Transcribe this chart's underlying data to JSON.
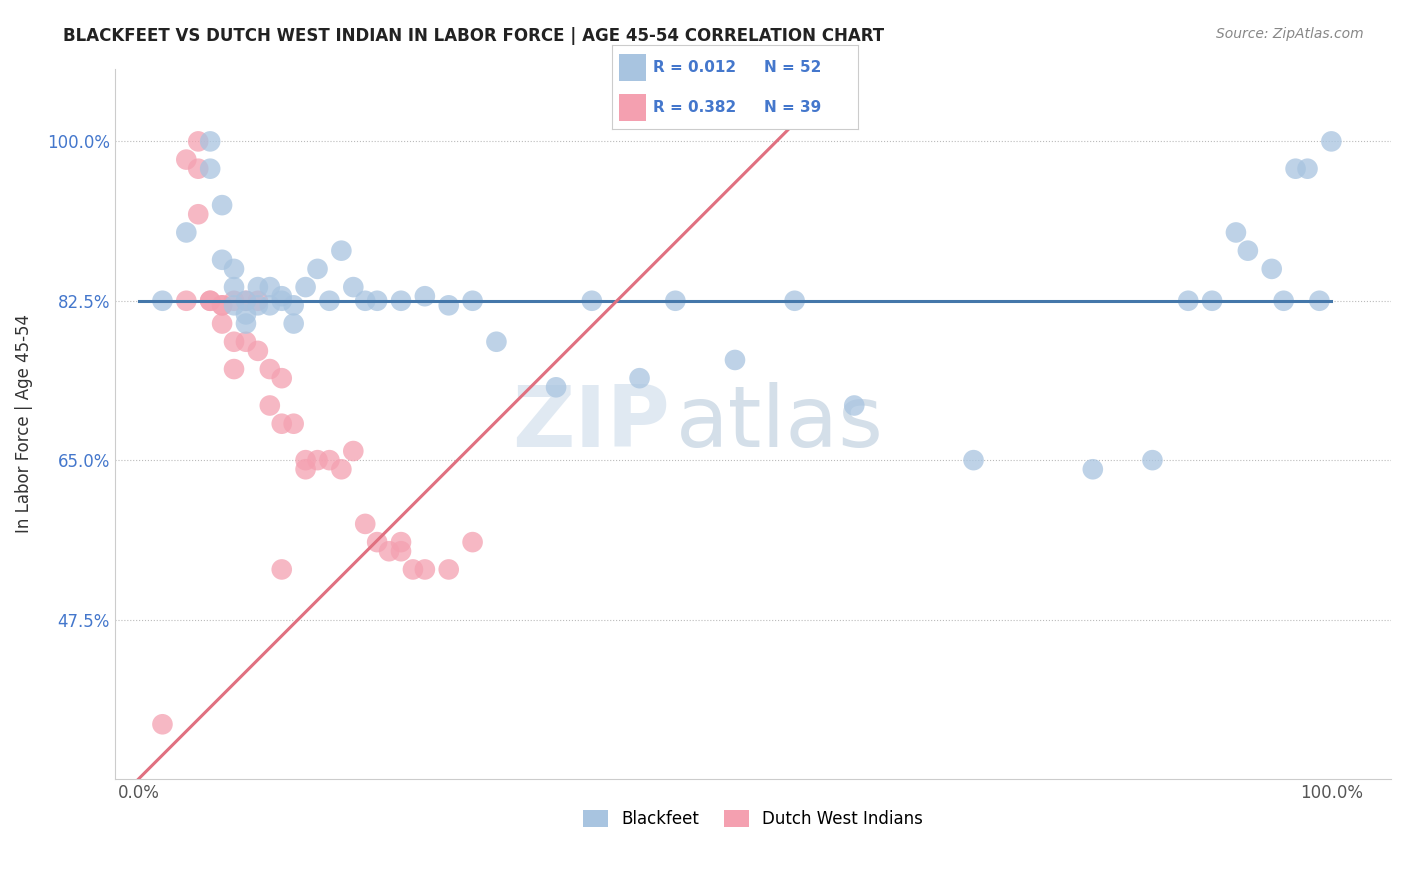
{
  "title": "BLACKFEET VS DUTCH WEST INDIAN IN LABOR FORCE | AGE 45-54 CORRELATION CHART",
  "source": "Source: ZipAtlas.com",
  "ylabel": "In Labor Force | Age 45-54",
  "xlim": [
    -0.02,
    1.05
  ],
  "ylim": [
    0.3,
    1.08
  ],
  "xticks": [
    0.0,
    1.0
  ],
  "xticklabels": [
    "0.0%",
    "100.0%"
  ],
  "yticks": [
    0.475,
    0.65,
    0.825,
    1.0
  ],
  "yticklabels": [
    "47.5%",
    "65.0%",
    "82.5%",
    "100.0%"
  ],
  "blue_R": "0.012",
  "blue_N": "52",
  "pink_R": "0.382",
  "pink_N": "39",
  "blue_color": "#a8c4e0",
  "pink_color": "#f4a0b0",
  "blue_line_color": "#4477aa",
  "pink_line_color": "#e07080",
  "legend_label_blue": "Blackfeet",
  "legend_label_pink": "Dutch West Indians",
  "watermark_zip": "ZIP",
  "watermark_atlas": "atlas",
  "blue_scatter_x": [
    0.02,
    0.04,
    0.06,
    0.06,
    0.07,
    0.07,
    0.08,
    0.08,
    0.08,
    0.09,
    0.09,
    0.09,
    0.1,
    0.1,
    0.11,
    0.11,
    0.12,
    0.12,
    0.13,
    0.13,
    0.14,
    0.15,
    0.16,
    0.17,
    0.18,
    0.19,
    0.2,
    0.22,
    0.24,
    0.26,
    0.28,
    0.3,
    0.35,
    0.38,
    0.42,
    0.45,
    0.5,
    0.55,
    0.6,
    0.7,
    0.8,
    0.85,
    0.88,
    0.9,
    0.92,
    0.93,
    0.95,
    0.96,
    0.97,
    0.98,
    0.99,
    1.0
  ],
  "blue_scatter_y": [
    0.825,
    0.9,
    1.0,
    0.97,
    0.93,
    0.87,
    0.86,
    0.84,
    0.82,
    0.825,
    0.81,
    0.8,
    0.84,
    0.82,
    0.84,
    0.82,
    0.83,
    0.825,
    0.82,
    0.8,
    0.84,
    0.86,
    0.825,
    0.88,
    0.84,
    0.825,
    0.825,
    0.825,
    0.83,
    0.82,
    0.825,
    0.78,
    0.73,
    0.825,
    0.74,
    0.825,
    0.76,
    0.825,
    0.71,
    0.65,
    0.64,
    0.65,
    0.825,
    0.825,
    0.9,
    0.88,
    0.86,
    0.825,
    0.97,
    0.97,
    0.825,
    1.0
  ],
  "pink_scatter_x": [
    0.02,
    0.04,
    0.04,
    0.05,
    0.05,
    0.05,
    0.06,
    0.06,
    0.07,
    0.07,
    0.07,
    0.08,
    0.08,
    0.08,
    0.09,
    0.09,
    0.1,
    0.1,
    0.11,
    0.11,
    0.12,
    0.12,
    0.13,
    0.14,
    0.14,
    0.15,
    0.16,
    0.17,
    0.18,
    0.19,
    0.2,
    0.21,
    0.22,
    0.22,
    0.23,
    0.24,
    0.26,
    0.28,
    0.12
  ],
  "pink_scatter_y": [
    0.36,
    0.825,
    0.98,
    1.0,
    0.97,
    0.92,
    0.825,
    0.825,
    0.82,
    0.82,
    0.8,
    0.825,
    0.78,
    0.75,
    0.825,
    0.78,
    0.825,
    0.77,
    0.75,
    0.71,
    0.74,
    0.69,
    0.69,
    0.65,
    0.64,
    0.65,
    0.65,
    0.64,
    0.66,
    0.58,
    0.56,
    0.55,
    0.56,
    0.55,
    0.53,
    0.53,
    0.53,
    0.56,
    0.53
  ],
  "blue_line_x0": 0.0,
  "blue_line_x1": 1.0,
  "blue_line_y0": 0.825,
  "blue_line_y1": 0.825,
  "pink_line_x0": 0.0,
  "pink_line_x1": 0.55,
  "pink_line_y0": 0.3,
  "pink_line_y1": 1.02
}
